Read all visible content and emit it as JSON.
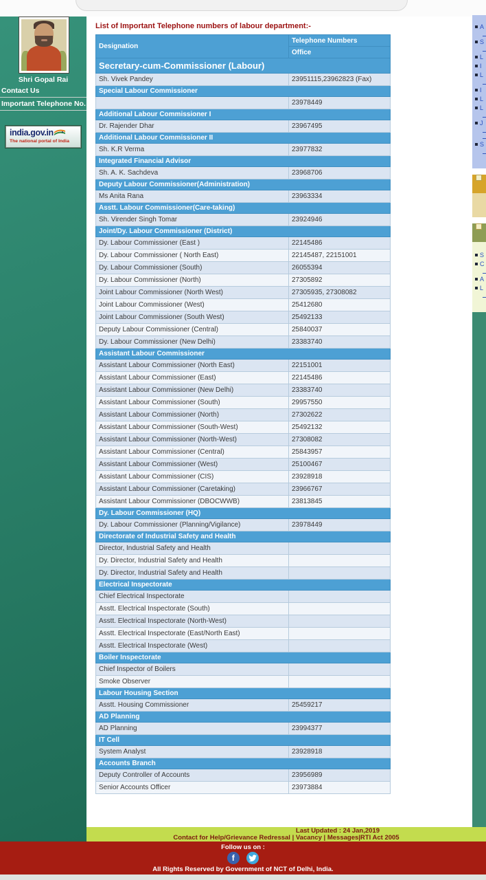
{
  "colors": {
    "accent_blue": "#4da0d4",
    "sidebar_teal": "#2b816a",
    "footer_red": "#a61d12",
    "bar_chartreuse": "#c3dc4e",
    "row_blue": "#dbe5f2",
    "row_white": "#f1f5fa"
  },
  "sidebar": {
    "official_name": "Shri Gopal Rai",
    "nav": [
      {
        "label": "Contact Us"
      },
      {
        "label": "Important Telephone No."
      }
    ],
    "portal": {
      "title": "india.gov.in",
      "subtitle": "The national portal of India"
    }
  },
  "main": {
    "heading": "List of Important Telephone numbers of labour department:-",
    "table": {
      "col_designation": "Designation",
      "col_phone_group": "Telephone Numbers",
      "col_office": "Office",
      "sections": [
        {
          "header": "Secretary-cum-Commissioner (Labour)",
          "big": true,
          "rows": [
            [
              "Sh. Vivek Pandey",
              "23951115,23962823 (Fax)"
            ]
          ]
        },
        {
          "header": "Special Labour Commissioner",
          "rows": [
            [
              "",
              "23978449"
            ]
          ]
        },
        {
          "header": "Additional Labour Commissioner I",
          "rows": [
            [
              "Dr. Rajender Dhar",
              "23967495"
            ]
          ]
        },
        {
          "header": "Additional Labour Commissioner II",
          "rows": [
            [
              "Sh. K.R Verma",
              "23977832"
            ]
          ]
        },
        {
          "header": "Integrated Financial Advisor",
          "rows": [
            [
              "Sh. A. K. Sachdeva",
              "23968706"
            ]
          ]
        },
        {
          "header": "Deputy Labour Commissioner(Administration)",
          "rows": [
            [
              "Ms Anita Rana",
              "23963334"
            ]
          ]
        },
        {
          "header": "Asstt. Labour Commissioner(Care-taking)",
          "rows": [
            [
              "Sh. Virender Singh Tomar",
              "23924946"
            ]
          ]
        },
        {
          "header": "Joint/Dy. Labour Commissioner (District)",
          "rows": [
            [
              "Dy. Labour Commissioner (East )",
              "22145486"
            ],
            [
              "Dy. Labour Commissioner ( North East)",
              "22145487, 22151001"
            ],
            [
              "Dy. Labour Commissioner (South)",
              "26055394"
            ],
            [
              "Dy. Labour Commissioner (North)",
              "27305892"
            ],
            [
              "Joint Labour Commissioner (North West)",
              "27305935, 27308082"
            ],
            [
              "Joint Labour Commissioner (West)",
              "25412680"
            ],
            [
              "Joint Labour Commissioner (South West)",
              "25492133"
            ],
            [
              "Deputy Labour Commissioner (Central)",
              "25840037"
            ],
            [
              "Dy. Labour Commissioner (New Delhi)",
              "23383740"
            ]
          ]
        },
        {
          "header": "Assistant Labour Commissioner",
          "rows": [
            [
              "Assistant Labour Commissioner (North East)",
              "22151001"
            ],
            [
              "Assistant Labour Commissioner (East)",
              "22145486"
            ],
            [
              "Assistant Labour Commissioner (New Delhi)",
              "23383740"
            ],
            [
              "Assistant Labour Commissioner (South)",
              "29957550"
            ],
            [
              "Assistant Labour Commissioner (North)",
              "27302622"
            ],
            [
              "Assistant Labour Commissioner (South-West)",
              "25492132"
            ],
            [
              "Assistant Labour Commissioner (North-West)",
              "27308082"
            ],
            [
              "Assistant Labour Commissioner (Central)",
              "25843957"
            ],
            [
              "Assistant Labour Commissioner (West)",
              "25100467"
            ],
            [
              "Assistant Labour Commissioner (CIS)",
              "23928918"
            ],
            [
              "Assistant Labour Commissioner (Caretaking)",
              "23966767"
            ],
            [
              "Assistant Labour Commissioner (DBOCWWB)",
              "23813845"
            ]
          ]
        },
        {
          "header": "Dy. Labour Commissioner (HQ)",
          "rows": [
            [
              "Dy. Labour Commissioner (Planning/Vigilance)",
              "23978449"
            ]
          ]
        },
        {
          "header": "Directorate of Industrial Safety and Health",
          "rows": [
            [
              "Director, Industrial Safety and Health",
              ""
            ],
            [
              "Dy. Director, Industrial Safety and Health",
              ""
            ],
            [
              "Dy. Director, Industrial Safety and Health",
              ""
            ]
          ]
        },
        {
          "header": "Electrical Inspectorate",
          "rows": [
            [
              "Chief Electrical Inspectorate",
              ""
            ],
            [
              "Asstt. Electrical Inspectorate (South)",
              ""
            ],
            [
              "Asstt. Electrical Inspectorate (North-West)",
              ""
            ],
            [
              "Asstt. Electrical Inspectorate (East/North East)",
              ""
            ],
            [
              "Asstt. Electrical Inspectorate (West)",
              ""
            ]
          ]
        },
        {
          "header": "Boiler Inspectorate",
          "rows": [
            [
              "Chief Inspector of Boilers",
              ""
            ],
            [
              "Smoke Observer",
              ""
            ]
          ]
        },
        {
          "header": "Labour Housing Section",
          "rows": [
            [
              "Asstt. Housing Commissioner",
              "25459217"
            ]
          ]
        },
        {
          "header": "AD Planning",
          "rows": [
            [
              "AD Planning",
              "23994377"
            ]
          ]
        },
        {
          "header": "IT Cell",
          "rows": [
            [
              "System Analyst",
              "23928918"
            ]
          ]
        },
        {
          "header": "Accounts Branch",
          "rows": [
            [
              "Deputy Controller of Accounts",
              "23956989"
            ],
            [
              "Senior Accounts Officer",
              "23973884"
            ]
          ]
        }
      ]
    }
  },
  "rail": {
    "top_links": [
      {
        "t": "A",
        "l": 2
      },
      {
        "t": "S",
        "l": 2
      },
      {
        "t": "L",
        "l": 1
      },
      {
        "t": "I",
        "l": 1
      },
      {
        "t": "L",
        "l": 2
      },
      {
        "t": "I",
        "l": 1
      },
      {
        "t": "L",
        "l": 1
      },
      {
        "t": "L",
        "l": 2
      },
      {
        "t": "J",
        "l": 3
      },
      {
        "t": "S",
        "l": 2
      }
    ],
    "bottom_links": [
      {
        "t": "S",
        "l": 1
      },
      {
        "t": "C",
        "l": 2
      },
      {
        "t": "A",
        "l": 1
      },
      {
        "t": "L",
        "l": 2
      }
    ]
  },
  "footer": {
    "last_updated": "Last Updated : 24 Jan,2019",
    "links_line": "Contact for Help/Grievance Redressal | Vacancy | Messages|RTI Act 2005",
    "follow": "Follow us on :",
    "fb_glyph": "f",
    "rights": "All Rights Reserved by Government of NCT of Delhi, India."
  }
}
